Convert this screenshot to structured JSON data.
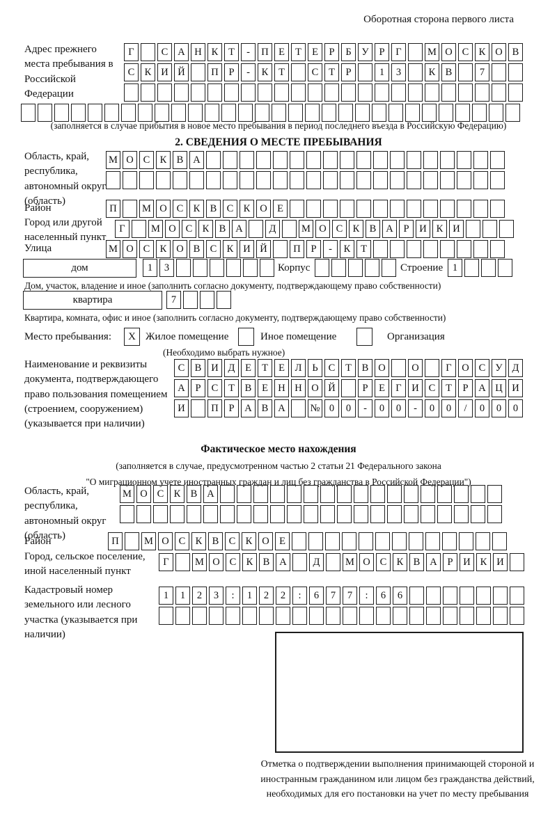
{
  "page": {
    "header_right": "Оборотная сторона первого листа"
  },
  "prev_address": {
    "label": "Адрес прежнего места пребывания в Российской Федерации",
    "rows": [
      "Г САНКТ-ПЕТЕРБУРГ МОСКОВ",
      "СКИЙ ПР-КТ СТР 13 КВ 7  ",
      "                        ",
      "                              "
    ],
    "caption": "(заполняется в случае прибытия в новое место пребывания в период последнего въезда в Российскую Федерацию)"
  },
  "section2": {
    "title": "2. СВЕДЕНИЯ О МЕСТЕ ПРЕБЫВАНИЯ"
  },
  "oblast1": {
    "label": "Область, край, республика, автономный округ (область)",
    "rows": [
      "МОСКВА                  ",
      "                        "
    ]
  },
  "raion1": {
    "label": "Район",
    "row": "П МОСКВСКОЕ             "
  },
  "gorod1": {
    "label": "Город или другой населенный пункт",
    "row": "Г МОСКВА Д МОСКВАРИКИ   "
  },
  "ulitsa": {
    "label": "Улица",
    "row": "МОСКОВСКИЙ ПР-КТ        "
  },
  "dom": {
    "box_label": "дом",
    "cells": "13      ",
    "korpus_label": "Корпус",
    "korpus_cells": "     ",
    "stroenie_label": "Строение",
    "stroenie_cells": "1   ",
    "caption": "Дом, участок, владение и иное (заполнить согласно документу, подтверждающему право собственности)"
  },
  "kvartira": {
    "box_label": "квартира",
    "cells": "7   ",
    "caption": "Квартира, комната, офис и иное (заполнить согласно документу, подтверждающему право собственности)"
  },
  "place_type": {
    "label": "Место пребывания:",
    "options": [
      {
        "label": "Жилое помещение",
        "mark": "X"
      },
      {
        "label": "Иное помещение",
        "mark": ""
      },
      {
        "label": "Организация",
        "mark": ""
      }
    ],
    "note": "(Необходимо выбрать нужное)"
  },
  "document_block": {
    "label": "Наименование и реквизиты документа, подтверждающего право пользования помещением (строением, сооружением) (указывается при наличии)",
    "rows": [
      "СВИДЕТЕЛЬСТВО О ГОСУД",
      "АРСТВЕННОЙ РЕГИСТРАЦИ",
      "И ПРАВА №00-00-00/000"
    ]
  },
  "fact": {
    "title": "Фактическое место нахождения",
    "caption1": "(заполняется в случае, предусмотренном частью 2 статьи 21 Федерального закона",
    "caption2": "\"О миграционном учете иностранных граждан и лиц без гражданства в Российской Федерации\")"
  },
  "oblast2": {
    "label": "Область, край, республика, автономный округ (область)",
    "rows": [
      "МОСКВА                 ",
      "                       "
    ]
  },
  "raion2": {
    "label": "Район",
    "row": "П МОСКВСКОЕ             "
  },
  "gorod2": {
    "label": "Город, сельское поселение, иной населенный пункт",
    "row": "Г МОСКВА Д МОСКВАРИКИ "
  },
  "kadastr": {
    "label": "Кадастровый номер земельного или лесного участка (указывается при наличии)",
    "rows": [
      "1123:122:677:66       ",
      "                      "
    ]
  },
  "stamp": {
    "caption": "Отметка о подтверждении выполнения принимающей стороной и иностранным гражданином или лицом без гражданства действий, необходимых для его постановки на учет по месту пребывания"
  }
}
